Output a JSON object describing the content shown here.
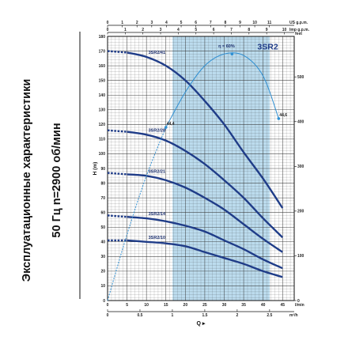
{
  "side_title": {
    "line1": "Эксплуатационные характеристики",
    "line2": "50 Гц  n=2900 об/мин"
  },
  "colors": {
    "curve": "#1f3c88",
    "efficiency": "#2f8fd2",
    "band": "#bcdcee",
    "grid": "#333333",
    "badge": "#1f3c88"
  },
  "chart_data": {
    "type": "line",
    "title": "3SR2",
    "xlabel": "Q",
    "ylabel": "H (m)",
    "x_unit": "l/min",
    "xlim": [
      0,
      48
    ],
    "ylim": [
      0,
      180
    ],
    "x_ticks": [
      0,
      5,
      10,
      15,
      20,
      25,
      30,
      35,
      40,
      45
    ],
    "y_ticks": [
      0,
      10,
      20,
      30,
      40,
      50,
      60,
      70,
      80,
      90,
      100,
      110,
      120,
      130,
      140,
      150,
      160,
      170,
      180
    ],
    "grid": true,
    "operating_range": [
      16.7,
      41.7
    ],
    "top_axis_usgpm": {
      "label": "US g.p.m.",
      "ticks": [
        "0",
        "1",
        "2",
        "3",
        "4",
        "5",
        "6",
        "7",
        "8",
        "9",
        "10",
        "11"
      ]
    },
    "top_axis_impgpm": {
      "label": "Imp g.p.m.",
      "ticks": [
        "0",
        "1",
        "2",
        "3",
        "4",
        "5",
        "6",
        "7",
        "8",
        "9",
        "10"
      ]
    },
    "bottom_axis_m3h": {
      "label": "m³/h",
      "ticks": [
        "0",
        "0.5",
        "1",
        "1.5",
        "2",
        "2.5"
      ]
    },
    "right_axis_feet": {
      "label": "feet",
      "ticks": [
        "0",
        "100",
        "200",
        "300",
        "400",
        "500"
      ]
    },
    "series": [
      {
        "name": "3SR2/41",
        "x": [
          0,
          5,
          10,
          15,
          20,
          25,
          30,
          35,
          40,
          45
        ],
        "y": [
          170,
          169,
          166,
          160,
          150,
          136,
          120,
          101,
          83,
          63
        ]
      },
      {
        "name": "3SR2/28",
        "x": [
          0,
          5,
          10,
          15,
          20,
          25,
          30,
          35,
          40,
          45
        ],
        "y": [
          116,
          115,
          113,
          109,
          102,
          93,
          82,
          70,
          56,
          43
        ]
      },
      {
        "name": "3SR2/21",
        "x": [
          0,
          5,
          10,
          15,
          20,
          25,
          30,
          35,
          40,
          45
        ],
        "y": [
          87,
          86,
          85,
          82,
          77,
          70,
          62,
          52,
          42,
          33
        ]
      },
      {
        "name": "3SR2/14",
        "x": [
          0,
          5,
          10,
          15,
          20,
          25,
          30,
          35,
          40,
          45
        ],
        "y": [
          58,
          57,
          56,
          54,
          51,
          47,
          41,
          35,
          28,
          22
        ]
      },
      {
        "name": "3SR2/10",
        "x": [
          0,
          5,
          10,
          15,
          20,
          25,
          30,
          35,
          40,
          45
        ],
        "y": [
          41,
          41,
          40,
          39,
          37,
          33,
          29,
          25,
          20,
          16
        ]
      }
    ],
    "efficiency_curve": {
      "label": "η = 60%",
      "x": [
        0,
        5,
        10,
        15,
        20,
        25,
        30,
        35,
        40,
        44
      ],
      "y": [
        0,
        45,
        85,
        118,
        142,
        160,
        168,
        167,
        153,
        124
      ],
      "markers": [
        {
          "x": 15,
          "y": 118,
          "label": "44,4"
        },
        {
          "x": 32,
          "y": 168,
          "label": ""
        },
        {
          "x": 44,
          "y": 124,
          "label": "44,6"
        }
      ]
    }
  }
}
